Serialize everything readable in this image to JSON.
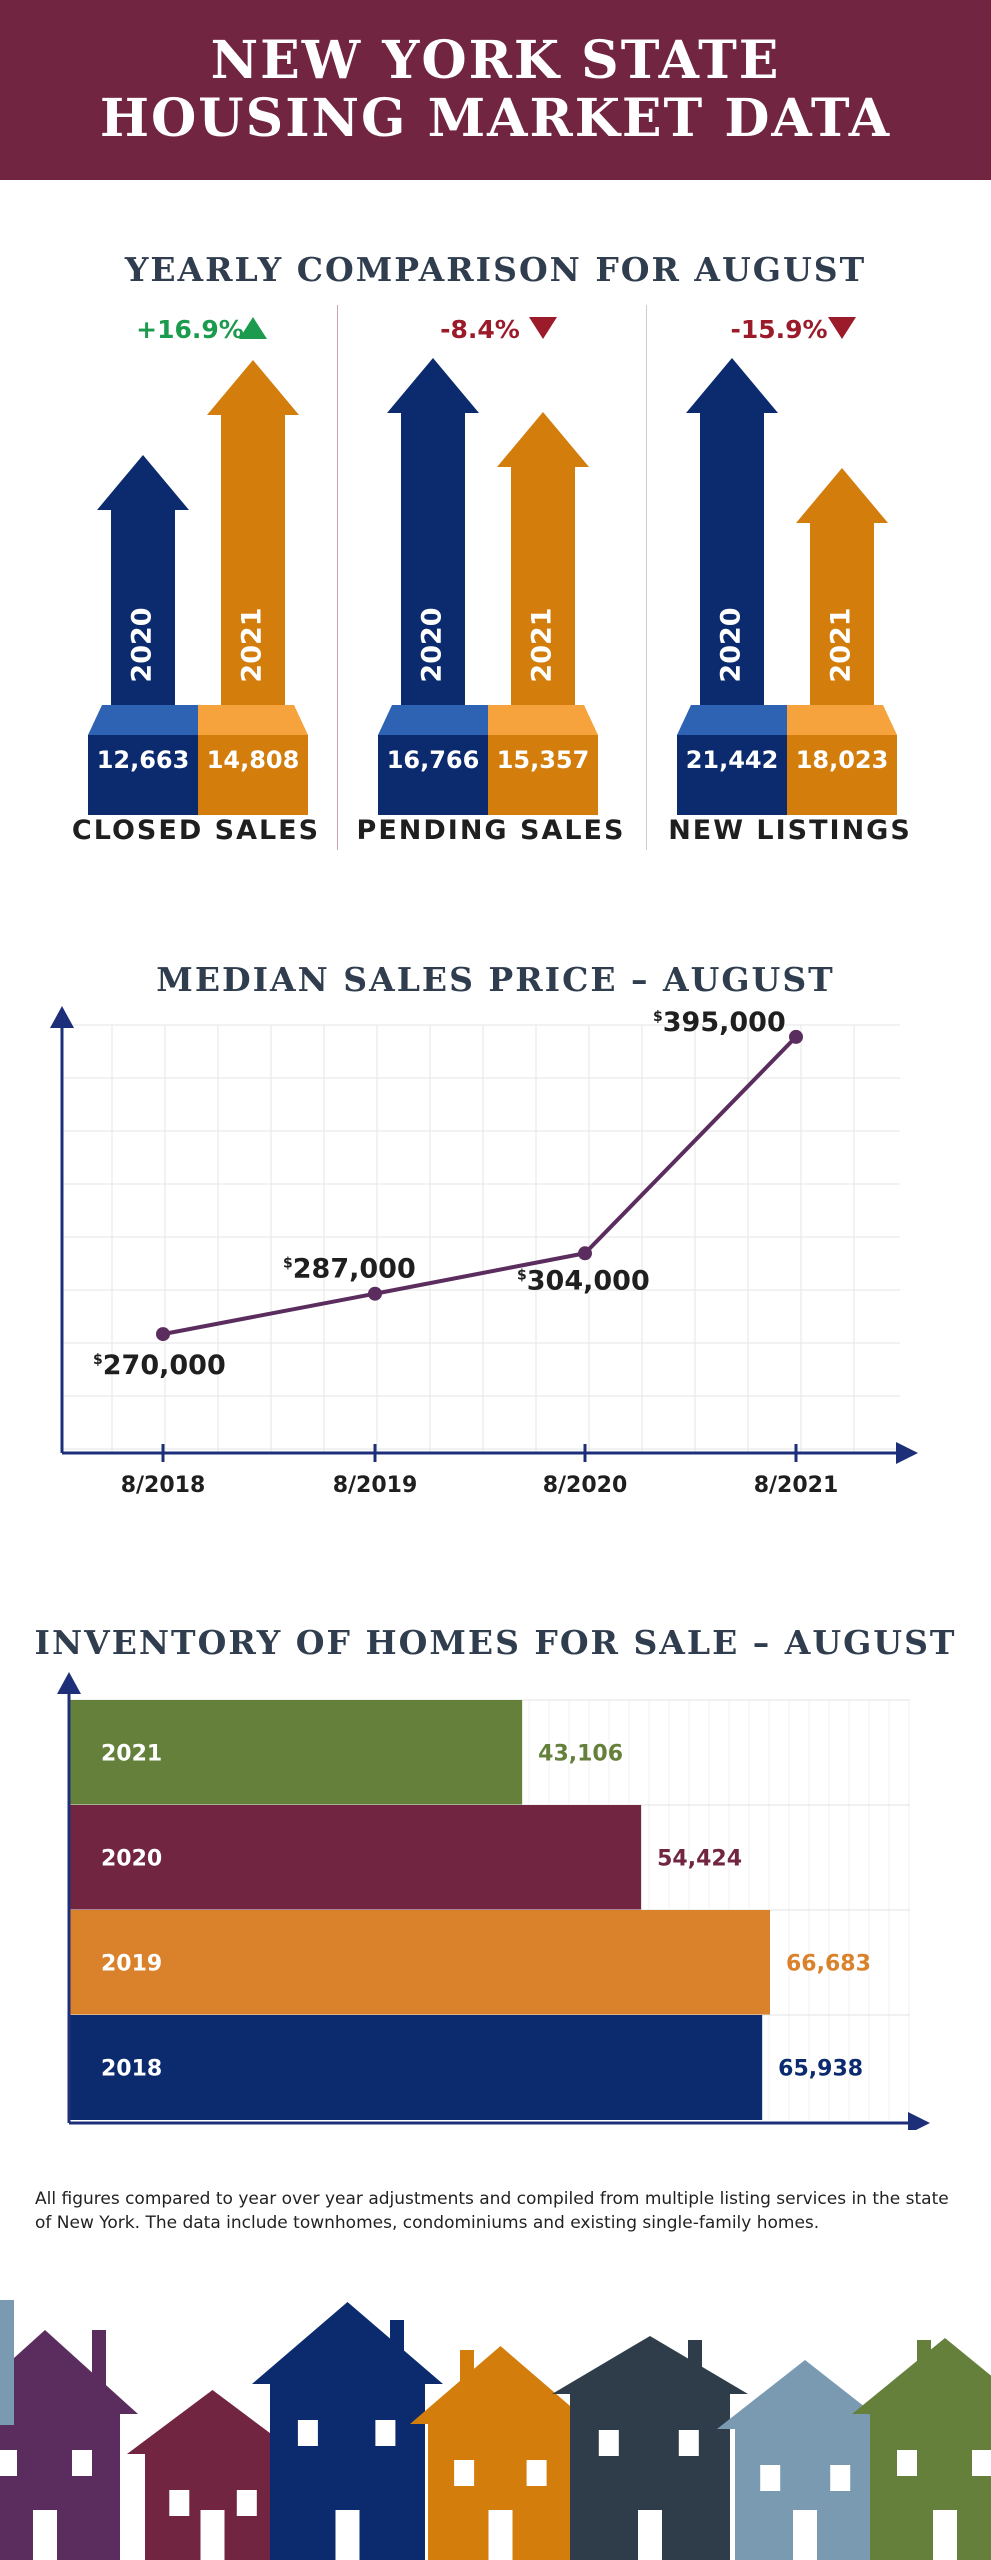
{
  "header": {
    "title_line1": "NEW YORK STATE",
    "title_line2": "HOUSING MARKET DATA"
  },
  "colors": {
    "maroon": "#722541",
    "navy": "#0c2b6e",
    "navy_light": "#2e62b3",
    "orange": "#d37d0d",
    "orange_light": "#f6a23d",
    "green": "#1c9a4d",
    "red": "#9b1b2b",
    "purple": "#5b2d5e",
    "olive": "#64803b",
    "bar_orange": "#d9822b"
  },
  "comparison": {
    "title": "YEARLY COMPARISON FOR AUGUST",
    "panels": [
      {
        "name": "CLOSED SALES",
        "change": "+16.9%",
        "direction": "up",
        "change_color": "#1c9a4d",
        "y2020_label": "2020",
        "y2021_label": "2021",
        "v2020": "12,663",
        "v2021": "14,808"
      },
      {
        "name": "PENDING SALES",
        "change": "-8.4%",
        "direction": "down",
        "change_color": "#9b1b2b",
        "y2020_label": "2020",
        "y2021_label": "2021",
        "v2020": "16,766",
        "v2021": "15,357"
      },
      {
        "name": "NEW LISTINGS",
        "change": "-15.9%",
        "direction": "down",
        "change_color": "#9b1b2b",
        "y2020_label": "2020",
        "y2021_label": "2021",
        "v2020": "21,442",
        "v2021": "18,023"
      }
    ]
  },
  "chart_data": [
    {
      "type": "line",
      "title": "MEDIAN SALES PRICE – AUGUST",
      "categories": [
        "8/2018",
        "8/2019",
        "8/2020",
        "8/2021"
      ],
      "values": [
        270000,
        287000,
        304000,
        395000
      ],
      "labels": [
        {
          "sup": "$",
          "text": "270,000"
        },
        {
          "sup": "$",
          "text": "287,000"
        },
        {
          "sup": "$",
          "text": "304,000"
        },
        {
          "sup": "$",
          "text": "395,000"
        }
      ],
      "ylim": [
        220000,
        400000
      ],
      "grid": true,
      "line_color": "#5b2d5e"
    },
    {
      "type": "bar",
      "orientation": "horizontal",
      "title": "INVENTORY OF HOMES FOR SALE – AUGUST",
      "categories": [
        "2021",
        "2020",
        "2019",
        "2018"
      ],
      "values": [
        43106,
        54424,
        66683,
        65938
      ],
      "value_labels": [
        "43,106",
        "54,424",
        "66,683",
        "65,938"
      ],
      "colors": [
        "#64803b",
        "#722541",
        "#d9822b",
        "#0c2b6e"
      ],
      "xlim": [
        0,
        80000
      ],
      "grid": true
    }
  ],
  "note": "All figures compared to year over year adjustments and compiled from multiple listing services in the state of New York.  The data include townhomes, condominiums and existing single-family homes."
}
